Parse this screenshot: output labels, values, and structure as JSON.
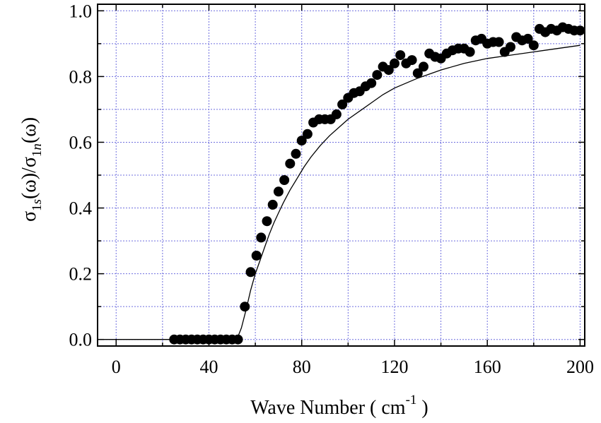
{
  "chart_data": {
    "type": "scatter",
    "xlabel": "Wave Number ( cm",
    "xlabel_superscript": "-1",
    "xlabel_suffix": " )",
    "ylabel_parts": {
      "sym1": "σ",
      "sub1": "1",
      "sub1_italic": "s",
      "mid": "(ω)/σ",
      "sub2": "1",
      "sub2_italic": "n",
      "end": "(ω)"
    },
    "xlim": [
      -8,
      202
    ],
    "ylim": [
      -0.02,
      1.02
    ],
    "x_ticks": [
      0,
      40,
      80,
      120,
      160,
      200
    ],
    "x_tick_labels": [
      "0",
      "40",
      "80",
      "120",
      "160",
      "200"
    ],
    "y_ticks": [
      0.0,
      0.2,
      0.4,
      0.6,
      0.8,
      1.0
    ],
    "y_tick_labels": [
      "0.0",
      "0.2",
      "0.4",
      "0.6",
      "0.8",
      "1.0"
    ],
    "grid": true,
    "grid_color": "#6f6fdf",
    "marker_color": "#000000",
    "line_color": "#000000",
    "series": [
      {
        "kind": "points",
        "x": [
          25,
          27.5,
          30,
          32.5,
          35,
          37.5,
          40,
          42.5,
          45,
          47.5,
          50,
          52.5,
          55.5,
          58,
          60.5,
          62.5,
          65,
          67.5,
          70,
          72.5,
          75,
          77.5,
          80,
          82.5,
          85,
          87.5,
          90,
          92.5,
          95,
          97.5,
          100,
          102.5,
          105,
          107.5,
          110,
          112.5,
          115,
          117.5,
          120,
          122.5,
          125,
          127.5,
          130,
          132.5,
          135,
          137.5,
          140,
          142.5,
          145,
          147.5,
          150,
          152.5,
          155,
          157.5,
          160,
          162.5,
          165,
          167.5,
          170,
          172.5,
          175,
          177.5,
          180,
          182.5,
          185,
          187.5,
          190,
          192.5,
          195,
          197.5,
          200
        ],
        "y": [
          0.0,
          0.0,
          0.0,
          0.0,
          0.0,
          0.0,
          0.0,
          0.0,
          0.0,
          0.0,
          0.0,
          0.0,
          0.1,
          0.205,
          0.255,
          0.31,
          0.36,
          0.41,
          0.45,
          0.485,
          0.535,
          0.565,
          0.605,
          0.625,
          0.66,
          0.67,
          0.67,
          0.67,
          0.685,
          0.715,
          0.735,
          0.75,
          0.755,
          0.77,
          0.78,
          0.805,
          0.83,
          0.82,
          0.84,
          0.865,
          0.84,
          0.85,
          0.81,
          0.83,
          0.87,
          0.86,
          0.855,
          0.87,
          0.88,
          0.885,
          0.885,
          0.875,
          0.91,
          0.915,
          0.9,
          0.905,
          0.905,
          0.875,
          0.89,
          0.92,
          0.91,
          0.915,
          0.895,
          0.945,
          0.935,
          0.945,
          0.94,
          0.95,
          0.945,
          0.94,
          0.94
        ]
      },
      {
        "kind": "line",
        "x": [
          -8,
          52,
          54,
          56,
          58,
          60,
          62,
          64,
          66,
          68,
          70,
          72,
          75,
          78,
          81,
          84,
          88,
          92,
          96,
          100,
          105,
          110,
          115,
          120,
          125,
          130,
          140,
          150,
          160,
          170,
          180,
          190,
          200
        ],
        "y": [
          0.0,
          0.0,
          0.035,
          0.09,
          0.15,
          0.2,
          0.24,
          0.28,
          0.32,
          0.355,
          0.385,
          0.415,
          0.455,
          0.49,
          0.525,
          0.555,
          0.59,
          0.62,
          0.645,
          0.67,
          0.695,
          0.72,
          0.745,
          0.765,
          0.78,
          0.795,
          0.82,
          0.84,
          0.855,
          0.865,
          0.875,
          0.885,
          0.895
        ]
      }
    ]
  }
}
